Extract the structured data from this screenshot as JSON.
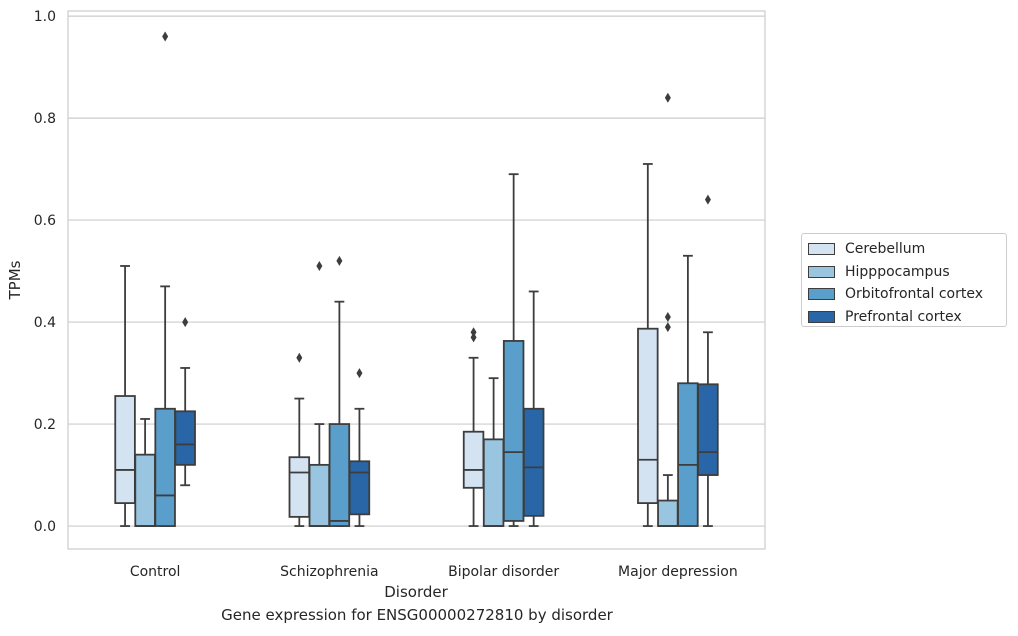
{
  "chart_data": {
    "type": "boxplot",
    "title": "",
    "caption": "Gene expression for ENSG00000272810 by disorder",
    "xlabel": "Disorder",
    "ylabel": "TPMs",
    "ylim": [
      -0.045,
      1.01
    ],
    "yticks": [
      "0.0",
      "0.2",
      "0.4",
      "0.6",
      "0.8",
      "1.0"
    ],
    "grid": "horizontal",
    "legend_position": "right",
    "categories": [
      "Control",
      "Schizophrenia",
      "Bipolar disorder",
      "Major depression"
    ],
    "series": [
      {
        "name": "Cerebellum",
        "color": "#d3e3f2",
        "boxes": [
          {
            "whislo": 0.0,
            "q1": 0.045,
            "median": 0.11,
            "q3": 0.255,
            "whishi": 0.51,
            "fliers": []
          },
          {
            "whislo": 0.0,
            "q1": 0.018,
            "median": 0.105,
            "q3": 0.135,
            "whishi": 0.25,
            "fliers": [
              0.33
            ]
          },
          {
            "whislo": 0.0,
            "q1": 0.075,
            "median": 0.11,
            "q3": 0.185,
            "whishi": 0.33,
            "fliers": [
              0.37,
              0.38
            ]
          },
          {
            "whislo": 0.0,
            "q1": 0.045,
            "median": 0.13,
            "q3": 0.387,
            "whishi": 0.71,
            "fliers": []
          }
        ]
      },
      {
        "name": "Hipppocampus",
        "color": "#9ac5e0",
        "boxes": [
          {
            "whislo": 0.0,
            "q1": 0.0,
            "median": 0.0,
            "q3": 0.14,
            "whishi": 0.21,
            "fliers": []
          },
          {
            "whislo": 0.0,
            "q1": 0.0,
            "median": 0.0,
            "q3": 0.12,
            "whishi": 0.2,
            "fliers": [
              0.51
            ]
          },
          {
            "whislo": 0.0,
            "q1": 0.0,
            "median": 0.0,
            "q3": 0.17,
            "whishi": 0.29,
            "fliers": []
          },
          {
            "whislo": 0.0,
            "q1": 0.0,
            "median": 0.0,
            "q3": 0.05,
            "whishi": 0.1,
            "fliers": [
              0.39,
              0.41,
              0.84
            ]
          }
        ]
      },
      {
        "name": "Orbitofrontal cortex",
        "color": "#5a9ecb",
        "boxes": [
          {
            "whislo": 0.0,
            "q1": 0.0,
            "median": 0.06,
            "q3": 0.23,
            "whishi": 0.47,
            "fliers": [
              0.96
            ]
          },
          {
            "whislo": 0.0,
            "q1": 0.0,
            "median": 0.01,
            "q3": 0.2,
            "whishi": 0.44,
            "fliers": [
              0.52
            ]
          },
          {
            "whislo": 0.0,
            "q1": 0.01,
            "median": 0.145,
            "q3": 0.363,
            "whishi": 0.69,
            "fliers": []
          },
          {
            "whislo": 0.0,
            "q1": 0.0,
            "median": 0.12,
            "q3": 0.28,
            "whishi": 0.53,
            "fliers": []
          }
        ]
      },
      {
        "name": "Prefrontal cortex",
        "color": "#2866a7",
        "boxes": [
          {
            "whislo": 0.08,
            "q1": 0.12,
            "median": 0.16,
            "q3": 0.225,
            "whishi": 0.31,
            "fliers": [
              0.4
            ]
          },
          {
            "whislo": 0.0,
            "q1": 0.023,
            "median": 0.105,
            "q3": 0.127,
            "whishi": 0.23,
            "fliers": [
              0.3
            ]
          },
          {
            "whislo": 0.0,
            "q1": 0.02,
            "median": 0.115,
            "q3": 0.23,
            "whishi": 0.46,
            "fliers": []
          },
          {
            "whislo": 0.0,
            "q1": 0.1,
            "median": 0.145,
            "q3": 0.278,
            "whishi": 0.38,
            "fliers": [
              0.64
            ]
          }
        ]
      }
    ]
  }
}
